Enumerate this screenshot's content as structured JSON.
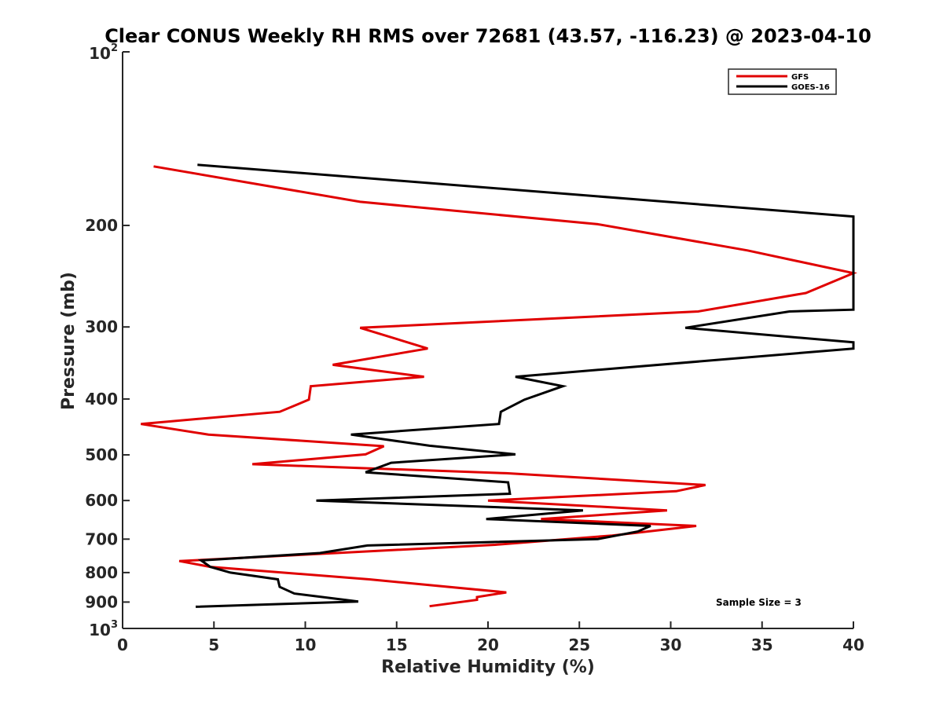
{
  "chart_data": {
    "type": "line",
    "title": "Clear CONUS Weekly RH RMS over 72681 (43.57, -116.23) @ 2023-04-10",
    "xlabel": "Relative Humidity (%)",
    "ylabel": "Pressure (mb)",
    "xlim": [
      0,
      40
    ],
    "ylim": [
      100,
      1000
    ],
    "y_scale": "log",
    "y_reversed": true,
    "grid": false,
    "legend_position": "top-right",
    "x_ticks": [
      "0",
      "5",
      "10",
      "15",
      "20",
      "25",
      "30",
      "35",
      "40"
    ],
    "x_tick_values": [
      0,
      5,
      10,
      15,
      20,
      25,
      30,
      35,
      40
    ],
    "y_ticks": [
      {
        "value": 100,
        "base": "10",
        "sup": "2"
      },
      {
        "value": 200,
        "label": "200"
      },
      {
        "value": 300,
        "label": "300"
      },
      {
        "value": 400,
        "label": "400"
      },
      {
        "value": 500,
        "label": "500"
      },
      {
        "value": 600,
        "label": "600"
      },
      {
        "value": 700,
        "label": "700"
      },
      {
        "value": 800,
        "label": "800"
      },
      {
        "value": 900,
        "label": "900"
      },
      {
        "value": 1000,
        "base": "10",
        "sup": "3"
      }
    ],
    "annotation": "Sample Size = 3",
    "series": [
      {
        "name": "GFS",
        "color": "#e00000",
        "points": [
          [
            1.7,
            158
          ],
          [
            13,
            182
          ],
          [
            26,
            199
          ],
          [
            34.2,
            221
          ],
          [
            40,
            242
          ],
          [
            37.4,
            262
          ],
          [
            31.5,
            282
          ],
          [
            13,
            301
          ],
          [
            16.7,
            327
          ],
          [
            11.5,
            349
          ],
          [
            16.5,
            366
          ],
          [
            10.3,
            380
          ],
          [
            10.2,
            401
          ],
          [
            8.6,
            421
          ],
          [
            1.0,
            442
          ],
          [
            4.7,
            461
          ],
          [
            14.3,
            483
          ],
          [
            13.3,
            499
          ],
          [
            7.1,
            519
          ],
          [
            21.0,
            538
          ],
          [
            31.9,
            564
          ],
          [
            30.3,
            578
          ],
          [
            20.0,
            600
          ],
          [
            29.8,
            624
          ],
          [
            22.9,
            646
          ],
          [
            31.4,
            664
          ],
          [
            26.8,
            690
          ],
          [
            20.4,
            716
          ],
          [
            11.7,
            740
          ],
          [
            3.1,
            764
          ],
          [
            4.8,
            782
          ],
          [
            13.5,
            822
          ],
          [
            21.0,
            866
          ],
          [
            19.4,
            882
          ],
          [
            19.4,
            892
          ],
          [
            16.8,
            915
          ]
        ]
      },
      {
        "name": "GOES-16",
        "color": "#000000",
        "points": [
          [
            4.1,
            157
          ],
          [
            40,
            193
          ],
          [
            40,
            280
          ],
          [
            36.5,
            282
          ],
          [
            30.8,
            301
          ],
          [
            40,
            319
          ],
          [
            40,
            327
          ],
          [
            21.5,
            366
          ],
          [
            24.1,
            380
          ],
          [
            22.0,
            401
          ],
          [
            20.7,
            421
          ],
          [
            20.6,
            442
          ],
          [
            12.5,
            461
          ],
          [
            16.8,
            482
          ],
          [
            21.5,
            499
          ],
          [
            14.7,
            516
          ],
          [
            13.3,
            536
          ],
          [
            21.1,
            558
          ],
          [
            21.2,
            584
          ],
          [
            10.6,
            600
          ],
          [
            25.2,
            624
          ],
          [
            19.9,
            646
          ],
          [
            28.9,
            664
          ],
          [
            28.2,
            679
          ],
          [
            26.0,
            700
          ],
          [
            13.4,
            718
          ],
          [
            10.8,
            740
          ],
          [
            4.3,
            762
          ],
          [
            4.8,
            782
          ],
          [
            5.9,
            800
          ],
          [
            8.5,
            822
          ],
          [
            8.6,
            847
          ],
          [
            9.4,
            870
          ],
          [
            12.9,
            898
          ],
          [
            4.0,
            917
          ]
        ]
      }
    ]
  }
}
